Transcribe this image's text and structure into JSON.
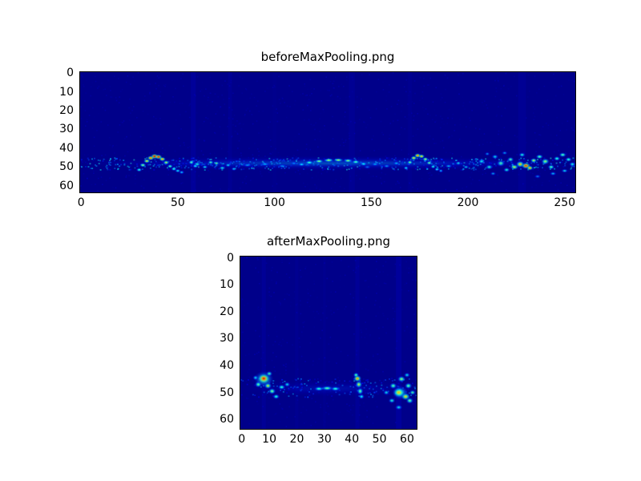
{
  "figure": {
    "background_color": "#ffffff",
    "axes_border_color": "#000000",
    "text_color": "#000000"
  },
  "chart_data": [
    {
      "type": "heatmap",
      "title": "beforeMaxPooling.png",
      "colormap": "jet",
      "cols": 256,
      "rows": 64,
      "xlim": [
        0,
        255
      ],
      "ylim": [
        0,
        63
      ],
      "x_ticks": [
        0,
        50,
        100,
        150,
        200,
        250
      ],
      "y_ticks": [
        0,
        10,
        20,
        30,
        40,
        50,
        60
      ],
      "grid": false,
      "background_value": 0.01,
      "noise_seed": 7,
      "noise_count": 1200,
      "band_noise": {
        "y": 48,
        "spread": 3.2,
        "count": 520,
        "vmin": 0.08,
        "vmax": 0.42
      },
      "streak_format": "[x, width, value, alpha]",
      "streaks": [
        [
          58,
          2.5,
          0.07,
          0.25
        ],
        [
          77,
          2,
          0.06,
          0.18
        ],
        [
          140,
          3,
          0.07,
          0.15
        ],
        [
          170,
          2,
          0.06,
          0.12
        ],
        [
          228,
          4,
          0.08,
          0.15
        ],
        [
          100,
          2,
          0.05,
          0.1
        ]
      ],
      "blob_format": "[x, y, rx, ry, value, alpha]",
      "blobs": [
        [
          128,
          48,
          132,
          4,
          0.28,
          0.3
        ],
        [
          128,
          48,
          132,
          2.5,
          0.3,
          0.25
        ],
        [
          60,
          48.5,
          2,
          1.3,
          0.45,
          0.9
        ],
        [
          64,
          50,
          1.6,
          1.1,
          0.42,
          0.9
        ],
        [
          67,
          47.5,
          1.6,
          1.1,
          0.5,
          0.9
        ],
        [
          70,
          48,
          1.5,
          1,
          0.55,
          0.9
        ],
        [
          73,
          50.5,
          1.8,
          1,
          0.45,
          0.9
        ],
        [
          76,
          49,
          1.5,
          1,
          0.42,
          0.9
        ],
        [
          79,
          51,
          1.5,
          1,
          0.38,
          0.9
        ],
        [
          86,
          49,
          2.5,
          1,
          0.33,
          0.8
        ],
        [
          95,
          48.5,
          3,
          1,
          0.32,
          0.8
        ],
        [
          104,
          49.5,
          2.5,
          1,
          0.32,
          0.8
        ],
        [
          110,
          48,
          2,
          0.9,
          0.3,
          0.7
        ],
        [
          148,
          50,
          2,
          0.9,
          0.3,
          0.7
        ],
        [
          152,
          48.5,
          2,
          1,
          0.34,
          0.8
        ],
        [
          158,
          49.5,
          2,
          1,
          0.33,
          0.8
        ],
        [
          163,
          48,
          1.8,
          1,
          0.36,
          0.8
        ],
        [
          190,
          49.5,
          2,
          1,
          0.38,
          0.8
        ],
        [
          195,
          48,
          1.6,
          1,
          0.42,
          0.8
        ],
        [
          199,
          50,
          1.6,
          1,
          0.4,
          0.8
        ],
        [
          30,
          51.5,
          1.6,
          1.1,
          0.45,
          1
        ],
        [
          32,
          49,
          1.7,
          1.2,
          0.55,
          1
        ],
        [
          34,
          46.8,
          1.8,
          1.2,
          0.65,
          1
        ],
        [
          36,
          45.2,
          1.9,
          1.3,
          0.8,
          1
        ],
        [
          38,
          44.3,
          2,
          1.4,
          0.92,
          1
        ],
        [
          40,
          44.6,
          1.9,
          1.3,
          0.88,
          1
        ],
        [
          42,
          45.8,
          1.8,
          1.2,
          0.75,
          1
        ],
        [
          44,
          47.6,
          1.7,
          1.2,
          0.6,
          1
        ],
        [
          46,
          49.6,
          1.6,
          1.1,
          0.5,
          1
        ],
        [
          48,
          51,
          1.6,
          1.1,
          0.45,
          1
        ],
        [
          50,
          52,
          1.6,
          1,
          0.4,
          1
        ],
        [
          52,
          52.8,
          1.5,
          1,
          0.35,
          1
        ],
        [
          57,
          47.5,
          1.5,
          1.2,
          0.5,
          1
        ],
        [
          59,
          49.5,
          1.4,
          1,
          0.42,
          1
        ],
        [
          114,
          48.6,
          2,
          0.9,
          0.38,
          1
        ],
        [
          118,
          47.6,
          2.2,
          0.9,
          0.48,
          1
        ],
        [
          123,
          46.9,
          2.4,
          0.95,
          0.55,
          1
        ],
        [
          128,
          46.4,
          2.6,
          1,
          0.58,
          1
        ],
        [
          133,
          46.3,
          2.6,
          1,
          0.58,
          1
        ],
        [
          138,
          46.6,
          2.4,
          0.95,
          0.55,
          1
        ],
        [
          142,
          47.3,
          2.2,
          0.9,
          0.5,
          1
        ],
        [
          146,
          48.3,
          2,
          0.9,
          0.4,
          1
        ],
        [
          168,
          50.5,
          1.4,
          1,
          0.4,
          1
        ],
        [
          170,
          47.5,
          1.5,
          1.1,
          0.55,
          1
        ],
        [
          172,
          45.2,
          1.7,
          1.2,
          0.68,
          1
        ],
        [
          174,
          43.9,
          1.8,
          1.3,
          0.78,
          1
        ],
        [
          176,
          44.3,
          1.7,
          1.2,
          0.7,
          1
        ],
        [
          178,
          45.8,
          1.6,
          1.1,
          0.6,
          1
        ],
        [
          180,
          47.8,
          1.5,
          1,
          0.55,
          1
        ],
        [
          182,
          49.8,
          1.4,
          1,
          0.45,
          1
        ],
        [
          184,
          51.2,
          1.4,
          1,
          0.4,
          1
        ],
        [
          186,
          52,
          1.3,
          0.9,
          0.33,
          1
        ],
        [
          207,
          47,
          2,
          1.5,
          0.4,
          0.9
        ],
        [
          211,
          50,
          2,
          1.4,
          0.45,
          0.9
        ],
        [
          214,
          44.5,
          1.8,
          1.3,
          0.4,
          0.9
        ],
        [
          217,
          48,
          2.2,
          1.8,
          0.5,
          0.9
        ],
        [
          220,
          51.5,
          1.8,
          1.3,
          0.45,
          0.9
        ],
        [
          222,
          46,
          1.8,
          1.4,
          0.5,
          0.9
        ],
        [
          224,
          50,
          2.2,
          1.5,
          0.6,
          1
        ],
        [
          227,
          48.5,
          2.2,
          1.8,
          0.68,
          1
        ],
        [
          230,
          49.3,
          2.4,
          1.7,
          0.85,
          1
        ],
        [
          232,
          50.5,
          1.8,
          1.3,
          0.75,
          1
        ],
        [
          234,
          46.5,
          1.8,
          1.3,
          0.6,
          1
        ],
        [
          237,
          44.5,
          2,
          1.3,
          0.5,
          1
        ],
        [
          240,
          47,
          2.2,
          1.7,
          0.55,
          1
        ],
        [
          243,
          50,
          1.8,
          1.3,
          0.5,
          1
        ],
        [
          246,
          45.5,
          1.8,
          1.3,
          0.46,
          1
        ],
        [
          249,
          43.5,
          2,
          1.3,
          0.5,
          1
        ],
        [
          252,
          46,
          1.8,
          1.3,
          0.46,
          1
        ],
        [
          254,
          48.5,
          1.8,
          1.3,
          0.42,
          1
        ],
        [
          244,
          53.5,
          1.8,
          1.1,
          0.36,
          0.9
        ],
        [
          250,
          52,
          1.8,
          1.1,
          0.4,
          0.9
        ],
        [
          210,
          43,
          1.4,
          1,
          0.33,
          0.8
        ],
        [
          219,
          42.5,
          1.6,
          1,
          0.34,
          0.8
        ],
        [
          228,
          43.5,
          1.8,
          1.3,
          0.45,
          0.9
        ],
        [
          236,
          55,
          1.8,
          1,
          0.3,
          0.8
        ],
        [
          213,
          53.5,
          1.6,
          1,
          0.35,
          0.8
        ]
      ]
    },
    {
      "type": "heatmap",
      "title": "afterMaxPooling.png",
      "colormap": "jet",
      "cols": 64,
      "rows": 64,
      "xlim": [
        0,
        63
      ],
      "ylim": [
        0,
        63
      ],
      "x_ticks": [
        0,
        10,
        20,
        30,
        40,
        50,
        60
      ],
      "y_ticks": [
        0,
        10,
        20,
        30,
        40,
        50,
        60
      ],
      "grid": false,
      "background_value": 0.01,
      "noise_seed": 13,
      "noise_count": 520,
      "band_noise": {
        "y": 48,
        "spread": 3.5,
        "count": 170,
        "vmin": 0.06,
        "vmax": 0.34
      },
      "streak_format": "[x, width, value, alpha]",
      "streaks": [
        [
          8,
          1.5,
          0.07,
          0.2
        ],
        [
          20,
          1.2,
          0.05,
          0.15
        ],
        [
          42,
          1.5,
          0.07,
          0.2
        ],
        [
          57,
          2,
          0.08,
          0.25
        ],
        [
          30,
          1,
          0.05,
          0.12
        ]
      ],
      "blob_format": "[x, y, rx, ry, value, alpha]",
      "blobs": [
        [
          32,
          48.5,
          34,
          3,
          0.2,
          0.25
        ],
        [
          8,
          45,
          3.6,
          3,
          0.55,
          0.8
        ],
        [
          8,
          44.8,
          2,
          1.7,
          0.92,
          1
        ],
        [
          9.5,
          47.5,
          1.4,
          1.2,
          0.6,
          1
        ],
        [
          11,
          49.5,
          1.4,
          1.2,
          0.52,
          1
        ],
        [
          12.5,
          51.5,
          1.3,
          1,
          0.45,
          1
        ],
        [
          6,
          47,
          1.3,
          1.2,
          0.5,
          1
        ],
        [
          5,
          44.5,
          1.1,
          1,
          0.4,
          0.9
        ],
        [
          10,
          43,
          1.2,
          1,
          0.5,
          0.9
        ],
        [
          14.5,
          48,
          1.4,
          1,
          0.45,
          1
        ],
        [
          16.5,
          47,
          1.2,
          1,
          0.4,
          0.9
        ],
        [
          28,
          48.6,
          1.8,
          0.9,
          0.45,
          1
        ],
        [
          31,
          48.4,
          2.2,
          0.9,
          0.5,
          1
        ],
        [
          34,
          48.6,
          1.8,
          0.9,
          0.45,
          1
        ],
        [
          41.5,
          43.5,
          1.1,
          1,
          0.5,
          1
        ],
        [
          42,
          44.8,
          1.5,
          1.3,
          0.72,
          1
        ],
        [
          42.5,
          47,
          1.3,
          1.4,
          0.6,
          1
        ],
        [
          43,
          49.5,
          1.2,
          1.4,
          0.5,
          1
        ],
        [
          43.5,
          51.5,
          1.1,
          1,
          0.4,
          1
        ],
        [
          57.5,
          50,
          3,
          2.6,
          0.5,
          0.8
        ],
        [
          57,
          50,
          2.1,
          1.8,
          0.7,
          1
        ],
        [
          59.5,
          51.5,
          1.7,
          1.4,
          0.65,
          1
        ],
        [
          55,
          47.5,
          1.4,
          1.2,
          0.5,
          1
        ],
        [
          58,
          45,
          1.5,
          1.2,
          0.55,
          1
        ],
        [
          60.5,
          47.5,
          1.4,
          1.2,
          0.5,
          1
        ],
        [
          61,
          53,
          1.4,
          1.2,
          0.5,
          1
        ],
        [
          57,
          55.5,
          1.4,
          1,
          0.4,
          0.9
        ],
        [
          62,
          50,
          1.2,
          1,
          0.5,
          0.9
        ],
        [
          60,
          43.5,
          1.2,
          1,
          0.4,
          0.9
        ],
        [
          54.5,
          53,
          1.3,
          1,
          0.45,
          0.9
        ],
        [
          52.5,
          50,
          1.2,
          1,
          0.4,
          0.9
        ]
      ]
    }
  ]
}
